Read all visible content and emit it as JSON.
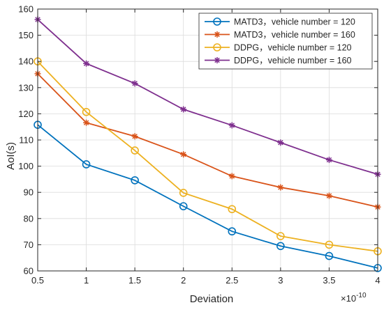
{
  "chart_data": {
    "type": "line",
    "xlabel": "Deviation",
    "ylabel": "AoI(s)",
    "x_multiplier_base": "×10",
    "x_multiplier_exp": "-10",
    "x": [
      0.5,
      1,
      1.5,
      2,
      2.5,
      3,
      3.5,
      4
    ],
    "x_tick_labels": [
      "0.5",
      "1",
      "1.5",
      "2",
      "2.5",
      "3",
      "3.5",
      "4"
    ],
    "xlim": [
      0.5,
      4
    ],
    "ylim": [
      60,
      160
    ],
    "y_ticks": [
      60,
      70,
      80,
      90,
      100,
      110,
      120,
      130,
      140,
      150,
      160
    ],
    "grid": true,
    "legend_position": "top-right",
    "series": [
      {
        "name": "MATD3，vehicle number = 120",
        "color": "#0072BD",
        "marker": "circle",
        "values": [
          115.8,
          100.7,
          94.6,
          84.7,
          75.1,
          69.5,
          65.7,
          61.1
        ]
      },
      {
        "name": "MATD3，vehicle number = 160",
        "color": "#D95319",
        "marker": "asterisk",
        "values": [
          135.3,
          116.6,
          111.4,
          104.5,
          96.2,
          91.9,
          88.7,
          84.4
        ]
      },
      {
        "name": "DDPG，vehicle number = 120",
        "color": "#EDB120",
        "marker": "circle",
        "values": [
          140.0,
          120.7,
          106.0,
          89.8,
          83.6,
          73.3,
          70.0,
          67.5
        ]
      },
      {
        "name": "DDPG，vehicle number = 160",
        "color": "#7E2F8E",
        "marker": "asterisk",
        "values": [
          156.0,
          139.2,
          131.6,
          121.7,
          115.6,
          109.0,
          102.4,
          96.9
        ]
      }
    ]
  }
}
